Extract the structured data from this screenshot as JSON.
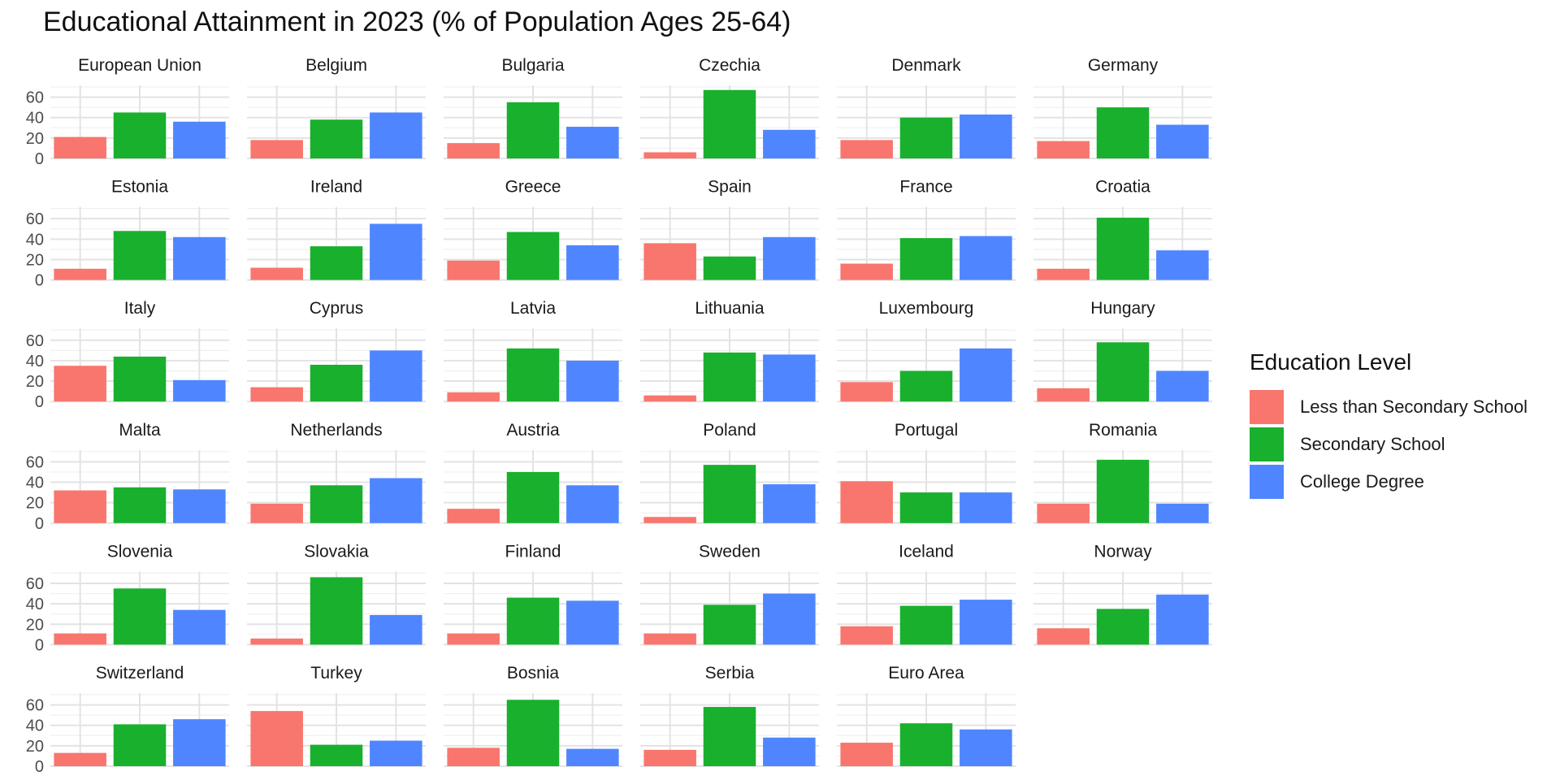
{
  "title": "Educational Attainment in 2023 (% of Population Ages 25-64)",
  "legend": {
    "title": "Education Level",
    "items": [
      {
        "label": "Less than Secondary School",
        "color": "#F8766D"
      },
      {
        "label": "Secondary School",
        "color": "#19B02D"
      },
      {
        "label": "College Degree",
        "color": "#4F86FF"
      }
    ]
  },
  "chart_data": {
    "type": "bar",
    "title": "Educational Attainment in 2023 (% of Population Ages 25-64)",
    "categories": [
      "Less than Secondary School",
      "Secondary School",
      "College Degree"
    ],
    "ylim": [
      0,
      70
    ],
    "yticks": [
      0,
      20,
      40,
      60
    ],
    "grid": true,
    "legend_position": "right",
    "facets": [
      {
        "name": "European Union",
        "values": [
          21,
          45,
          36
        ]
      },
      {
        "name": "Belgium",
        "values": [
          18,
          38,
          45
        ]
      },
      {
        "name": "Bulgaria",
        "values": [
          15,
          55,
          31
        ]
      },
      {
        "name": "Czechia",
        "values": [
          6,
          67,
          28
        ]
      },
      {
        "name": "Denmark",
        "values": [
          18,
          40,
          43
        ]
      },
      {
        "name": "Germany",
        "values": [
          17,
          50,
          33
        ]
      },
      {
        "name": "Estonia",
        "values": [
          11,
          48,
          42
        ]
      },
      {
        "name": "Ireland",
        "values": [
          12,
          33,
          55
        ]
      },
      {
        "name": "Greece",
        "values": [
          19,
          47,
          34
        ]
      },
      {
        "name": "Spain",
        "values": [
          36,
          23,
          42
        ]
      },
      {
        "name": "France",
        "values": [
          16,
          41,
          43
        ]
      },
      {
        "name": "Croatia",
        "values": [
          11,
          61,
          29
        ]
      },
      {
        "name": "Italy",
        "values": [
          35,
          44,
          21
        ]
      },
      {
        "name": "Cyprus",
        "values": [
          14,
          36,
          50
        ]
      },
      {
        "name": "Latvia",
        "values": [
          9,
          52,
          40
        ]
      },
      {
        "name": "Lithuania",
        "values": [
          6,
          48,
          46
        ]
      },
      {
        "name": "Luxembourg",
        "values": [
          19,
          30,
          52
        ]
      },
      {
        "name": "Hungary",
        "values": [
          13,
          58,
          30
        ]
      },
      {
        "name": "Malta",
        "values": [
          32,
          35,
          33
        ]
      },
      {
        "name": "Netherlands",
        "values": [
          19,
          37,
          44
        ]
      },
      {
        "name": "Austria",
        "values": [
          14,
          50,
          37
        ]
      },
      {
        "name": "Poland",
        "values": [
          6,
          57,
          38
        ]
      },
      {
        "name": "Portugal",
        "values": [
          41,
          30,
          30
        ]
      },
      {
        "name": "Romania",
        "values": [
          19,
          62,
          19
        ]
      },
      {
        "name": "Slovenia",
        "values": [
          11,
          55,
          34
        ]
      },
      {
        "name": "Slovakia",
        "values": [
          6,
          66,
          29
        ]
      },
      {
        "name": "Finland",
        "values": [
          11,
          46,
          43
        ]
      },
      {
        "name": "Sweden",
        "values": [
          11,
          39,
          50
        ]
      },
      {
        "name": "Iceland",
        "values": [
          18,
          38,
          44
        ]
      },
      {
        "name": "Norway",
        "values": [
          16,
          35,
          49
        ]
      },
      {
        "name": "Switzerland",
        "values": [
          13,
          41,
          46
        ]
      },
      {
        "name": "Turkey",
        "values": [
          54,
          21,
          25
        ]
      },
      {
        "name": "Bosnia",
        "values": [
          18,
          65,
          17
        ]
      },
      {
        "name": "Serbia",
        "values": [
          16,
          58,
          28
        ]
      },
      {
        "name": "Euro Area",
        "values": [
          23,
          42,
          36
        ]
      }
    ]
  }
}
